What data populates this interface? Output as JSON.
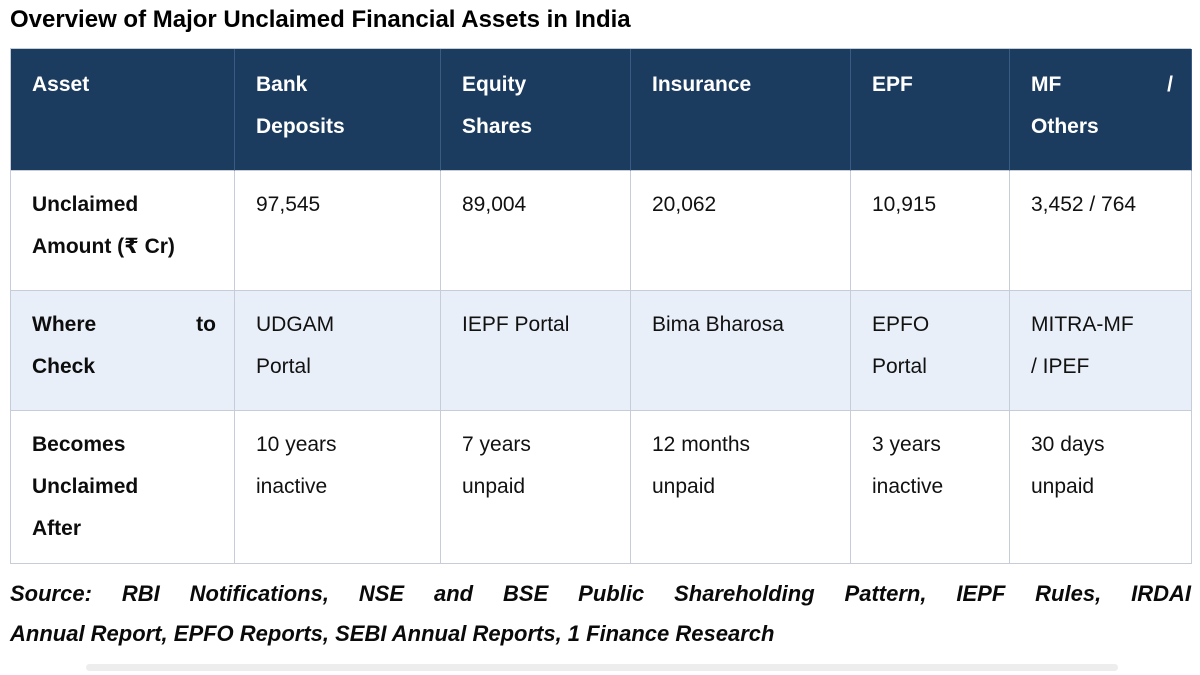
{
  "title": "Overview of Major Unclaimed Financial Assets in India",
  "table": {
    "columns": [
      {
        "label": "Asset",
        "lines": [
          "Asset"
        ],
        "justify": false
      },
      {
        "label": "Bank Deposits",
        "lines": [
          "Bank",
          "Deposits"
        ],
        "justify": false
      },
      {
        "label": "Equity Shares",
        "lines": [
          "Equity",
          "Shares"
        ],
        "justify": false
      },
      {
        "label": "Insurance",
        "lines": [
          "Insurance"
        ],
        "justify": false
      },
      {
        "label": "EPF",
        "lines": [
          "EPF"
        ],
        "justify": false
      },
      {
        "label": "MF / Others",
        "lines": [
          "MF /",
          "Others"
        ],
        "justify": true
      }
    ],
    "rows": [
      {
        "label": "Unclaimed Amount (₹ Cr)",
        "label_lines": [
          "Unclaimed",
          "Amount (₹ Cr)"
        ],
        "label_justify": false,
        "cells": [
          {
            "text": "97,545",
            "lines": [
              "97,545"
            ]
          },
          {
            "text": "89,004",
            "lines": [
              "89,004"
            ]
          },
          {
            "text": "20,062",
            "lines": [
              "20,062"
            ]
          },
          {
            "text": "10,915",
            "lines": [
              "10,915"
            ]
          },
          {
            "text": "3,452 / 764",
            "lines": [
              "3,452 / 764"
            ]
          }
        ]
      },
      {
        "label": "Where to Check",
        "label_lines": [
          "Where to",
          "Check"
        ],
        "label_justify": true,
        "cells": [
          {
            "text": "UDGAM Portal",
            "lines": [
              "UDGAM",
              "Portal"
            ]
          },
          {
            "text": "IEPF Portal",
            "lines": [
              "IEPF Portal"
            ]
          },
          {
            "text": "Bima Bharosa",
            "lines": [
              "Bima Bharosa"
            ]
          },
          {
            "text": "EPFO Portal",
            "lines": [
              "EPFO",
              "Portal"
            ]
          },
          {
            "text": "MITRA-MF / IPEF",
            "lines": [
              "MITRA-MF",
              "/ IPEF"
            ]
          }
        ]
      },
      {
        "label": "Becomes Unclaimed After",
        "label_lines": [
          "Becomes",
          "Unclaimed",
          "After"
        ],
        "label_justify": false,
        "cells": [
          {
            "text": "10 years inactive",
            "lines": [
              "10 years",
              "inactive"
            ]
          },
          {
            "text": "7 years unpaid",
            "lines": [
              "7 years",
              "unpaid"
            ]
          },
          {
            "text": "12 months unpaid",
            "lines": [
              "12 months",
              "unpaid"
            ]
          },
          {
            "text": "3 years inactive",
            "lines": [
              "3 years",
              "inactive"
            ]
          },
          {
            "text": "30 days unpaid",
            "lines": [
              "30 days",
              "unpaid"
            ]
          }
        ]
      }
    ]
  },
  "source": {
    "full_text": "Source: RBI Notifications, NSE and BSE Public Shareholding Pattern, IEPF Rules, IRDAI Annual Report, EPFO Reports, SEBI Annual Reports, 1 Finance Research",
    "lines": [
      "Source: RBI Notifications, NSE and BSE Public Shareholding Pattern, IEPF Rules, IRDAI",
      "Annual Report, EPFO Reports, SEBI Annual Reports, 1 Finance Research"
    ]
  },
  "colors": {
    "header_bg": "#1c3c5f",
    "header_text": "#ffffff",
    "alt_row_bg": "#e9eff8",
    "border": "#c6cdd8",
    "text": "#111111"
  },
  "chart_data": {
    "type": "table",
    "title": "Overview of Major Unclaimed Financial Assets in India",
    "columns": [
      "Asset",
      "Bank Deposits",
      "Equity Shares",
      "Insurance",
      "EPF",
      "MF / Others"
    ],
    "rows": [
      [
        "Unclaimed Amount (₹ Cr)",
        "97,545",
        "89,004",
        "20,062",
        "10,915",
        "3,452 / 764"
      ],
      [
        "Where to Check",
        "UDGAM Portal",
        "IEPF Portal",
        "Bima Bharosa",
        "EPFO Portal",
        "MITRA-MF / IPEF"
      ],
      [
        "Becomes Unclaimed After",
        "10 years inactive",
        "7 years unpaid",
        "12 months unpaid",
        "3 years inactive",
        "30 days unpaid"
      ]
    ],
    "unclaimed_amount_cr": {
      "bank_deposits": 97545,
      "equity_shares": 89004,
      "insurance": 20062,
      "epf": 10915,
      "mf": 3452,
      "others": 764
    },
    "source": "Source: RBI Notifications, NSE and BSE Public Shareholding Pattern, IEPF Rules, IRDAI Annual Report, EPFO Reports, SEBI Annual Reports, 1 Finance Research"
  }
}
